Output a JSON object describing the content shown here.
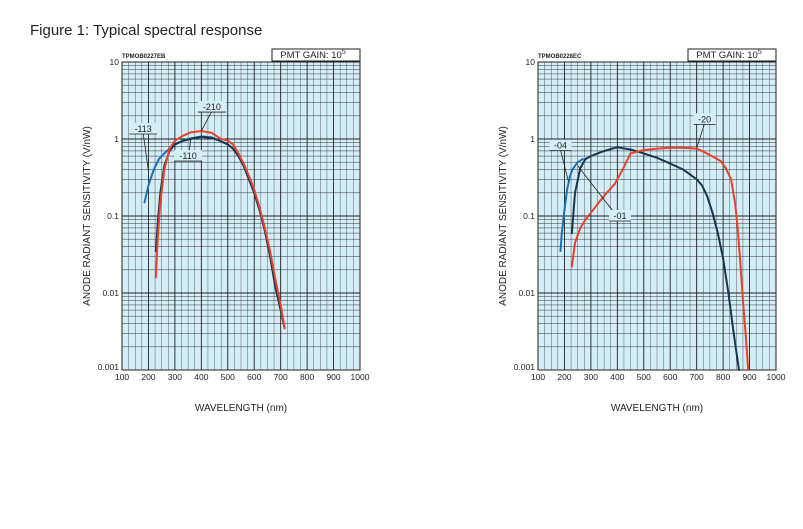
{
  "figure_title": "Figure 1: Typical spectral response",
  "chart_data": [
    {
      "type": "line",
      "code": "TPMOB0227EB",
      "gain_label": "PMT GAIN: 10",
      "gain_exp": "5",
      "xlabel": "WAVELENGTH (nm)",
      "ylabel": "ANODE RADIANT SENSITIVITY (V/nW)",
      "xlim": [
        100,
        1000
      ],
      "ylim": [
        0.001,
        10
      ],
      "yscale": "log",
      "grid": true,
      "xticks": [
        "100",
        "200",
        "300",
        "400",
        "500",
        "600",
        "700",
        "800",
        "900",
        "1000"
      ],
      "yticks": [
        "0.001",
        "0.01",
        "0.1",
        "1",
        "10"
      ],
      "series": [
        {
          "name": "-113",
          "color": "#1f6fb2",
          "points": [
            [
              185,
              0.15
            ],
            [
              200,
              0.25
            ],
            [
              220,
              0.4
            ],
            [
              240,
              0.55
            ],
            [
              260,
              0.65
            ],
            [
              280,
              0.75
            ],
            [
              300,
              0.85
            ],
            [
              330,
              0.95
            ],
            [
              360,
              1.02
            ],
            [
              400,
              1.08
            ],
            [
              440,
              1.05
            ],
            [
              470,
              0.95
            ],
            [
              500,
              0.85
            ],
            [
              520,
              0.75
            ],
            [
              540,
              0.6
            ],
            [
              560,
              0.45
            ],
            [
              580,
              0.3
            ],
            [
              600,
              0.2
            ],
            [
              620,
              0.12
            ],
            [
              640,
              0.065
            ],
            [
              660,
              0.03
            ],
            [
              680,
              0.012
            ],
            [
              700,
              0.006
            ],
            [
              715,
              0.0035
            ]
          ]
        },
        {
          "name": "-110",
          "color": "#1a3550",
          "points": [
            [
              228,
              0.035
            ],
            [
              235,
              0.08
            ],
            [
              245,
              0.2
            ],
            [
              260,
              0.45
            ],
            [
              280,
              0.7
            ],
            [
              300,
              0.85
            ],
            [
              330,
              0.95
            ],
            [
              360,
              1.0
            ],
            [
              400,
              1.07
            ],
            [
              440,
              1.03
            ],
            [
              470,
              0.95
            ],
            [
              500,
              0.85
            ],
            [
              520,
              0.75
            ],
            [
              540,
              0.6
            ],
            [
              560,
              0.45
            ],
            [
              580,
              0.3
            ],
            [
              600,
              0.2
            ],
            [
              620,
              0.12
            ],
            [
              640,
              0.065
            ],
            [
              660,
              0.03
            ],
            [
              680,
              0.012
            ],
            [
              700,
              0.006
            ],
            [
              715,
              0.0035
            ]
          ]
        },
        {
          "name": "-210",
          "color": "#e8412c",
          "points": [
            [
              228,
              0.016
            ],
            [
              235,
              0.05
            ],
            [
              245,
              0.15
            ],
            [
              260,
              0.4
            ],
            [
              280,
              0.75
            ],
            [
              300,
              0.95
            ],
            [
              330,
              1.1
            ],
            [
              360,
              1.22
            ],
            [
              400,
              1.27
            ],
            [
              440,
              1.2
            ],
            [
              470,
              1.02
            ],
            [
              500,
              0.95
            ],
            [
              520,
              0.85
            ],
            [
              540,
              0.65
            ],
            [
              560,
              0.48
            ],
            [
              580,
              0.33
            ],
            [
              600,
              0.22
            ],
            [
              620,
              0.13
            ],
            [
              640,
              0.07
            ],
            [
              660,
              0.035
            ],
            [
              680,
              0.015
            ],
            [
              700,
              0.007
            ],
            [
              715,
              0.0035
            ]
          ]
        }
      ],
      "annotations": [
        {
          "text": "-113",
          "x": 180,
          "y": 1.35,
          "tx": 200,
          "ty": 0.38
        },
        {
          "text": "-110",
          "x": 350,
          "y": 0.6,
          "tx": 360,
          "ty": 1.0
        },
        {
          "text": "-210",
          "x": 440,
          "y": 2.6,
          "tx": 400,
          "ty": 1.27
        }
      ]
    },
    {
      "type": "line",
      "code": "TPMOB0228EC",
      "gain_label": "PMT GAIN: 10",
      "gain_exp": "5",
      "xlabel": "WAVELENGTH (nm)",
      "ylabel": "ANODE RADIANT SENSITIVITY (V/nW)",
      "xlim": [
        100,
        1000
      ],
      "ylim": [
        0.001,
        10
      ],
      "yscale": "log",
      "grid": true,
      "xticks": [
        "100",
        "200",
        "300",
        "400",
        "500",
        "600",
        "700",
        "800",
        "900",
        "1000"
      ],
      "yticks": [
        "0.001",
        "0.01",
        "0.1",
        "1",
        "10"
      ],
      "series": [
        {
          "name": "-04",
          "color": "#1f6fb2",
          "points": [
            [
              185,
              0.035
            ],
            [
              190,
              0.06
            ],
            [
              200,
              0.12
            ],
            [
              210,
              0.22
            ],
            [
              220,
              0.32
            ],
            [
              230,
              0.4
            ],
            [
              250,
              0.5
            ],
            [
              270,
              0.55
            ]
          ]
        },
        {
          "name": "-01",
          "color": "#1a3550",
          "points": [
            [
              228,
              0.06
            ],
            [
              240,
              0.2
            ],
            [
              260,
              0.42
            ],
            [
              280,
              0.55
            ],
            [
              300,
              0.6
            ],
            [
              340,
              0.68
            ],
            [
              380,
              0.75
            ],
            [
              400,
              0.78
            ],
            [
              450,
              0.73
            ],
            [
              500,
              0.65
            ],
            [
              550,
              0.57
            ],
            [
              600,
              0.48
            ],
            [
              650,
              0.4
            ],
            [
              700,
              0.3
            ],
            [
              720,
              0.25
            ],
            [
              740,
              0.18
            ],
            [
              760,
              0.11
            ],
            [
              780,
              0.06
            ],
            [
              800,
              0.028
            ],
            [
              820,
              0.01
            ],
            [
              840,
              0.003
            ],
            [
              860,
              0.001
            ]
          ]
        },
        {
          "name": "-20",
          "color": "#e8412c",
          "points": [
            [
              228,
              0.022
            ],
            [
              240,
              0.045
            ],
            [
              260,
              0.07
            ],
            [
              280,
              0.09
            ],
            [
              300,
              0.11
            ],
            [
              330,
              0.15
            ],
            [
              360,
              0.2
            ],
            [
              390,
              0.26
            ],
            [
              420,
              0.4
            ],
            [
              450,
              0.65
            ],
            [
              500,
              0.72
            ],
            [
              550,
              0.75
            ],
            [
              600,
              0.77
            ],
            [
              650,
              0.77
            ],
            [
              700,
              0.75
            ],
            [
              720,
              0.7
            ],
            [
              750,
              0.62
            ],
            [
              790,
              0.52
            ],
            [
              810,
              0.42
            ],
            [
              830,
              0.3
            ],
            [
              845,
              0.15
            ],
            [
              855,
              0.07
            ],
            [
              865,
              0.025
            ],
            [
              875,
              0.008
            ],
            [
              885,
              0.003
            ],
            [
              895,
              0.001
            ]
          ]
        }
      ],
      "annotations": [
        {
          "text": "-04",
          "x": 185,
          "y": 0.82,
          "tx": 215,
          "ty": 0.28
        },
        {
          "text": "-01",
          "x": 410,
          "y": 0.1,
          "tx": 250,
          "ty": 0.45
        },
        {
          "text": "-20",
          "x": 730,
          "y": 1.8,
          "tx": 700,
          "ty": 0.76
        }
      ]
    }
  ]
}
